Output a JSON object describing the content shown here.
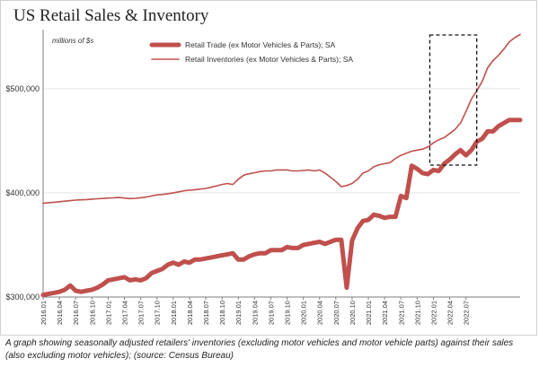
{
  "chart_data": {
    "type": "line",
    "title": "US Retail Sales & Inventory",
    "units_label": "millions of $s",
    "xlabel": "",
    "ylabel": "",
    "ylim": [
      300000,
      555000
    ],
    "yticks": [
      300000,
      400000,
      500000
    ],
    "ytick_labels": [
      "$300,000",
      "$400,000",
      "$500,000"
    ],
    "start_period": "2016.01",
    "xtick_labels": [
      "2016.01",
      "2016.04",
      "2016.07",
      "2016.10",
      "2017.01",
      "2017.04",
      "2017.07",
      "2017.10",
      "2018.01",
      "2018.04",
      "2018.07",
      "2018.10",
      "2019.01",
      "2019.04",
      "2019.07",
      "2019.10",
      "2020.01",
      "2020.04",
      "2020.07",
      "2020.10",
      "2021.01",
      "2021.04",
      "2021.07",
      "2021.10",
      "2022.01",
      "2022.04",
      "2022.07"
    ],
    "legend_position": "top-center",
    "highlight": {
      "from": "2022.01",
      "to": "2022.08",
      "style": "dashed-box"
    },
    "series": [
      {
        "name": "Retail Trade (ex Motor Vehicles & Parts); SA",
        "color": "#c0504d",
        "style": "thick",
        "values": [
          302000,
          303000,
          304000,
          305000,
          307000,
          311000,
          306000,
          305000,
          306000,
          307000,
          309000,
          312000,
          316000,
          317000,
          318000,
          319000,
          316000,
          317000,
          316000,
          318000,
          323000,
          325000,
          327000,
          331000,
          333000,
          331000,
          334000,
          333000,
          336000,
          336000,
          337000,
          338000,
          339000,
          340000,
          341000,
          342000,
          336000,
          336000,
          339000,
          341000,
          342000,
          342000,
          345000,
          345000,
          345000,
          348000,
          347000,
          347000,
          350000,
          351000,
          352000,
          353000,
          351000,
          353000,
          355000,
          355000,
          309000,
          354000,
          366000,
          373000,
          374000,
          379000,
          378000,
          376000,
          377000,
          377000,
          397000,
          395000,
          426000,
          423000,
          419000,
          418000,
          422000,
          421000,
          428000,
          432000,
          437000,
          441000,
          436000,
          441000,
          449000,
          452000,
          459000,
          459000,
          464000,
          467000,
          470000,
          470000,
          470000
        ]
      },
      {
        "name": "Retail Inventories (ex Motor Vehicles & Parts); SA",
        "color": "#c0504d",
        "style": "thin",
        "values": [
          390000,
          390500,
          391000,
          391500,
          392000,
          392500,
          393000,
          393300,
          393600,
          394000,
          394300,
          394600,
          395000,
          395200,
          395500,
          395000,
          394500,
          394800,
          395300,
          396000,
          397000,
          398000,
          398500,
          399200,
          400000,
          401000,
          402000,
          402500,
          403000,
          403600,
          404200,
          405400,
          406700,
          408000,
          409000,
          408000,
          413000,
          417000,
          418300,
          419300,
          420400,
          421000,
          421000,
          422000,
          422000,
          422000,
          421000,
          421000,
          421500,
          422000,
          421000,
          422000,
          419000,
          415000,
          411000,
          406000,
          407000,
          409000,
          413000,
          419000,
          421000,
          425000,
          427000,
          428000,
          429000,
          433000,
          436000,
          438000,
          440000,
          441000,
          442000,
          444000,
          448000,
          451000,
          453000,
          457000,
          461000,
          467000,
          478000,
          490000,
          498000,
          507000,
          520000,
          527000,
          532000,
          538000,
          545000,
          549000,
          552000
        ]
      }
    ]
  },
  "caption": "A graph showing seasonally adjusted retailers' inventories (excluding motor vehicles and motor vehicle parts) against their sales (also excluding motor vehicles); (source: Census Bureau)",
  "colors": {
    "line": "#c0504d",
    "axis": "#7f7f7f",
    "grid": "#e6e6e6",
    "highlight": "#111111"
  }
}
